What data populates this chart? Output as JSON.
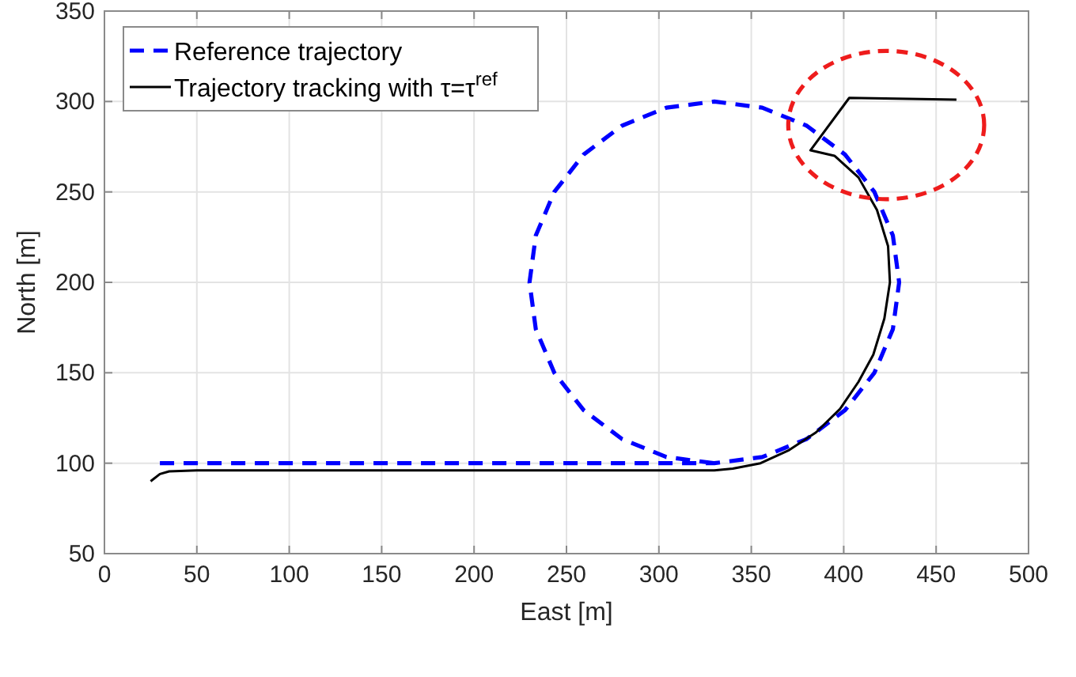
{
  "chart_data": {
    "type": "line",
    "xlabel": "East [m]",
    "ylabel": "North [m]",
    "xlim": [
      0,
      500
    ],
    "ylim": [
      50,
      350
    ],
    "xticks": [
      0,
      50,
      100,
      150,
      200,
      250,
      300,
      350,
      400,
      450,
      500
    ],
    "yticks": [
      50,
      100,
      150,
      200,
      250,
      300,
      350
    ],
    "grid": true,
    "legend": "top left",
    "marker": "none",
    "series": [
      {
        "name": "Reference trajectory",
        "color": "#0000ff",
        "line_style": "dashed",
        "x": [
          30,
          330,
          355.9,
          380,
          400.7,
          416.6,
          426.6,
          430,
          426.6,
          416.6,
          400.7,
          380,
          355.9,
          330,
          304.1,
          280,
          259.3,
          243.4,
          233.4,
          230,
          233.4,
          243.4,
          259.3,
          280,
          304.1,
          330
        ],
        "values": [
          100,
          100,
          103.4,
          113.4,
          129.3,
          150,
          174.1,
          200,
          225.9,
          250,
          270.7,
          286.6,
          296.6,
          300,
          296.6,
          286.6,
          270.7,
          250,
          225.9,
          200,
          174.1,
          150,
          129.3,
          113.4,
          103.4,
          100
        ]
      },
      {
        "name": "Trajectory tracking with τ=τ$^{ref}$",
        "color": "#000000",
        "line_style": "solid",
        "x": [
          25,
          30,
          35,
          50,
          330,
          340,
          355,
          370,
          385,
          398,
          408,
          416,
          422,
          425,
          424,
          418,
          408,
          395,
          382,
          403,
          461
        ],
        "values": [
          90,
          94,
          95.5,
          96,
          96,
          97,
          100,
          107,
          117,
          130,
          145,
          160,
          180,
          200,
          220,
          240,
          258,
          270,
          273,
          302,
          301
        ]
      }
    ]
  }
}
